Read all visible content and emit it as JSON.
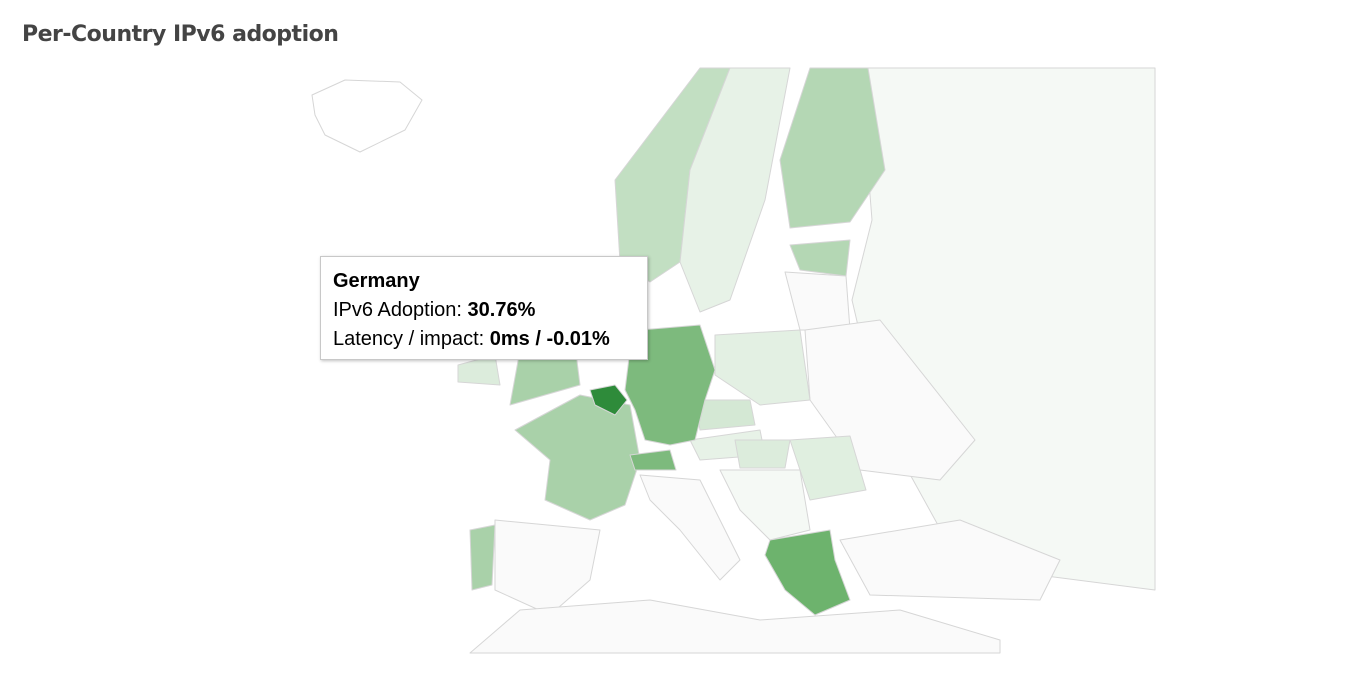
{
  "title": "Per-Country IPv6 adoption",
  "tooltip": {
    "country": "Germany",
    "rows": [
      {
        "label": "IPv6 Adoption:",
        "value": "30.76%"
      },
      {
        "label": "Latency / impact:",
        "value": "0ms / -0.01%"
      }
    ]
  }
}
